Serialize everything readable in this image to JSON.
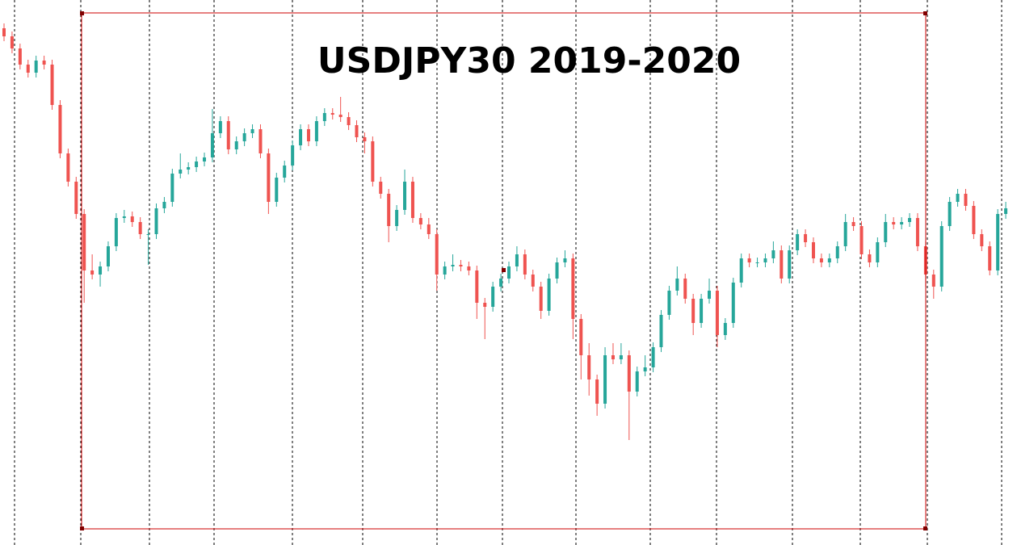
{
  "chart_data": {
    "type": "candlestick",
    "title": "USDJPY30  2019-2020",
    "ylim": [
      0,
      675
    ],
    "up_color": "#26a69a",
    "down_color": "#ef5350",
    "open": [
      640,
      630,
      615,
      595,
      585,
      600,
      595,
      545,
      485,
      450,
      410,
      340,
      335,
      345,
      370,
      405,
      407,
      400,
      385,
      385,
      417,
      425,
      460,
      465,
      468,
      475,
      480,
      510,
      525,
      490,
      500,
      510,
      515,
      485,
      425,
      455,
      470,
      495,
      515,
      500,
      525,
      535,
      533,
      530,
      520,
      505,
      500,
      450,
      435,
      395,
      415,
      450,
      405,
      397,
      385,
      335,
      345,
      347,
      345,
      340,
      300,
      295,
      320,
      330,
      345,
      360,
      335,
      320,
      290,
      330,
      350,
      355,
      280,
      235,
      205,
      175,
      235,
      230,
      235,
      190,
      215,
      220,
      245,
      285,
      315,
      330,
      305,
      275,
      305,
      315,
      260,
      275,
      325,
      355,
      350,
      350,
      355,
      365,
      330,
      365,
      385,
      375,
      355,
      350,
      355,
      370,
      400,
      395,
      360,
      350,
      375,
      400,
      397,
      400,
      405,
      370,
      335,
      320,
      395,
      425,
      435,
      420,
      385,
      370,
      340,
      410
    ],
    "high": [
      646,
      636,
      621,
      601,
      606,
      606,
      601,
      551,
      491,
      456,
      416,
      360,
      351,
      376,
      411,
      415,
      413,
      406,
      391,
      423,
      431,
      466,
      485,
      474,
      481,
      486,
      540,
      531,
      531,
      506,
      516,
      521,
      521,
      491,
      461,
      476,
      501,
      521,
      521,
      531,
      541,
      541,
      555,
      536,
      526,
      511,
      506,
      456,
      441,
      421,
      465,
      456,
      411,
      405,
      391,
      351,
      360,
      353,
      351,
      346,
      306,
      326,
      336,
      351,
      370,
      366,
      341,
      326,
      336,
      356,
      365,
      361,
      286,
      250,
      211,
      245,
      250,
      250,
      241,
      221,
      235,
      251,
      291,
      321,
      345,
      336,
      311,
      311,
      330,
      321,
      281,
      331,
      361,
      361,
      356,
      361,
      376,
      371,
      371,
      391,
      391,
      381,
      361,
      361,
      376,
      410,
      406,
      401,
      366,
      381,
      410,
      406,
      406,
      411,
      411,
      376,
      341,
      401,
      431,
      441,
      441,
      426,
      391,
      376,
      416,
      425
    ],
    "low": [
      624,
      609,
      589,
      579,
      579,
      589,
      539,
      479,
      444,
      404,
      300,
      329,
      320,
      339,
      364,
      399,
      394,
      379,
      347,
      379,
      411,
      419,
      454,
      459,
      462,
      469,
      474,
      504,
      484,
      484,
      494,
      504,
      479,
      410,
      419,
      449,
      464,
      489,
      494,
      494,
      519,
      527,
      524,
      514,
      499,
      485,
      444,
      429,
      375,
      389,
      409,
      399,
      391,
      379,
      315,
      329,
      339,
      339,
      334,
      280,
      255,
      289,
      314,
      324,
      339,
      329,
      314,
      280,
      284,
      324,
      344,
      255,
      205,
      185,
      160,
      169,
      224,
      224,
      130,
      184,
      209,
      214,
      239,
      279,
      309,
      299,
      260,
      269,
      299,
      245,
      254,
      269,
      319,
      344,
      344,
      344,
      349,
      324,
      324,
      359,
      369,
      349,
      344,
      344,
      349,
      364,
      389,
      354,
      344,
      344,
      369,
      391,
      391,
      394,
      364,
      320,
      305,
      314,
      389,
      419,
      414,
      379,
      364,
      334,
      334,
      404
    ],
    "close": [
      630,
      615,
      595,
      585,
      600,
      595,
      545,
      485,
      450,
      410,
      340,
      335,
      345,
      370,
      405,
      407,
      400,
      385,
      385,
      417,
      425,
      460,
      465,
      468,
      475,
      480,
      510,
      525,
      490,
      500,
      510,
      515,
      485,
      425,
      455,
      470,
      495,
      515,
      500,
      525,
      535,
      533,
      530,
      520,
      505,
      500,
      450,
      435,
      395,
      415,
      450,
      405,
      397,
      385,
      335,
      345,
      347,
      345,
      340,
      300,
      295,
      320,
      330,
      345,
      360,
      335,
      320,
      290,
      330,
      350,
      355,
      280,
      235,
      205,
      175,
      235,
      230,
      235,
      190,
      215,
      220,
      245,
      285,
      315,
      330,
      305,
      275,
      305,
      315,
      260,
      275,
      325,
      355,
      350,
      350,
      355,
      365,
      330,
      365,
      385,
      375,
      355,
      350,
      355,
      370,
      400,
      395,
      360,
      350,
      375,
      400,
      397,
      400,
      405,
      370,
      335,
      320,
      395,
      425,
      435,
      420,
      385,
      370,
      340,
      410,
      417
    ]
  }
}
